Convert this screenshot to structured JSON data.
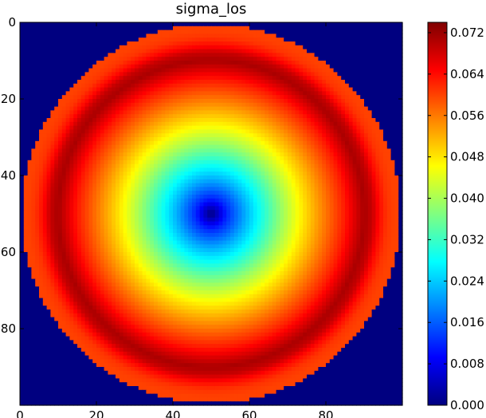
{
  "chart_data": {
    "type": "heatmap",
    "title": "sigma_los",
    "xlabel": "",
    "ylabel": "",
    "grid": false,
    "xlim": [
      0,
      100
    ],
    "ylim": [
      100,
      0
    ],
    "x_ticks": [
      0,
      20,
      40,
      60,
      80
    ],
    "y_ticks": [
      0,
      20,
      40,
      60,
      80
    ],
    "x_tick_labels": [
      "0",
      "20",
      "40",
      "60",
      "80"
    ],
    "y_tick_labels": [
      "0",
      "20",
      "40",
      "60",
      "80"
    ],
    "grid_size": [
      100,
      100
    ],
    "colormap": "jet",
    "field": {
      "center": [
        49.5,
        49.5
      ],
      "outside_radius": 49.5,
      "outside_value": 0.0,
      "radial_profile": {
        "r": [
          0,
          4,
          9,
          14,
          19,
          24,
          29,
          32,
          35,
          38,
          40,
          42,
          44,
          46,
          48,
          49.5
        ],
        "value": [
          0.0,
          0.012,
          0.022,
          0.031,
          0.04,
          0.048,
          0.055,
          0.059,
          0.063,
          0.068,
          0.071,
          0.069,
          0.064,
          0.061,
          0.06,
          0.06
        ]
      }
    },
    "colorbar": {
      "vmin": 0.0,
      "vmax": 0.074,
      "ticks": [
        0.0,
        0.008,
        0.016,
        0.024,
        0.032,
        0.04,
        0.048,
        0.056,
        0.064,
        0.072
      ],
      "tick_labels": [
        "0.000",
        "0.008",
        "0.016",
        "0.024",
        "0.032",
        "0.040",
        "0.048",
        "0.056",
        "0.064",
        "0.072"
      ]
    }
  }
}
